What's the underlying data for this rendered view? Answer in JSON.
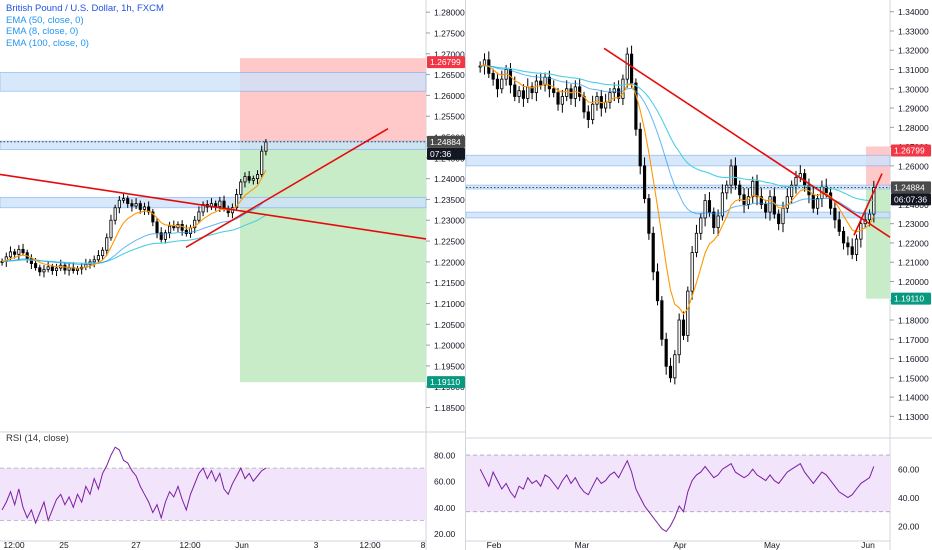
{
  "legend": {
    "title": "British Pound / U.S. Dollar, 1h, FXCM",
    "ema": [
      "EMA (50, close, 0)",
      "EMA (8, close, 0)",
      "EMA (100, close, 0)"
    ]
  },
  "rsi_label": "RSI (14, close)",
  "colors": {
    "candle": "#000000",
    "ema_fast": "#ff9800",
    "ema_slow": "#4dd0e1",
    "ema_blue": "#2196f3",
    "trend": "#e50b0b",
    "target_zone": "#c8ebc8",
    "stop_zone": "#ffc9c9",
    "rsi_line": "#7b1fa2",
    "rsi_band": "#f1e4fb",
    "zone_band": "#cfe3fb"
  },
  "chart_data": [
    {
      "type": "candlestick",
      "name": "left-1h",
      "ylim": [
        1.182,
        1.281
      ],
      "y_ticks": [
        "1.28000",
        "1.27500",
        "1.27000",
        "1.26500",
        "1.26000",
        "1.25500",
        "1.25000",
        "1.24500",
        "1.24000",
        "1.23500",
        "1.23000",
        "1.22500",
        "1.22000",
        "1.21500",
        "1.21000",
        "1.20500",
        "1.20000",
        "1.19500",
        "1.19000",
        "1.18500"
      ],
      "x_ticks": [
        "12:00",
        "25",
        "27",
        "12:00",
        "Jun",
        "3",
        "12:00",
        "8"
      ],
      "price_labels": [
        {
          "text": "1.26799",
          "kind": "stop"
        },
        {
          "text": "1.24884",
          "kind": "last"
        },
        {
          "text": "07:36",
          "kind": "timer"
        },
        {
          "text": "1.19110",
          "kind": "target"
        }
      ],
      "closes": [
        1.2201,
        1.2212,
        1.2224,
        1.2218,
        1.223,
        1.2222,
        1.2208,
        1.2196,
        1.2186,
        1.2176,
        1.2182,
        1.2188,
        1.2179,
        1.2185,
        1.2192,
        1.218,
        1.2186,
        1.2179,
        1.2183,
        1.2187,
        1.2194,
        1.22,
        1.2205,
        1.2215,
        1.2228,
        1.2258,
        1.23,
        1.233,
        1.2348,
        1.2352,
        1.234,
        1.2334,
        1.234,
        1.2326,
        1.2332,
        1.232,
        1.2296,
        1.227,
        1.2254,
        1.227,
        1.2286,
        1.2282,
        1.229,
        1.2276,
        1.2268,
        1.2282,
        1.23,
        1.232,
        1.2338,
        1.2332,
        1.234,
        1.2333,
        1.2346,
        1.2328,
        1.2318,
        1.233,
        1.2362,
        1.2392,
        1.2405,
        1.2396,
        1.24,
        1.241,
        1.2466,
        1.2488
      ],
      "rsi": [
        38,
        44,
        52,
        42,
        54,
        40,
        32,
        38,
        28,
        36,
        44,
        30,
        38,
        46,
        50,
        42,
        48,
        40,
        50,
        44,
        56,
        50,
        62,
        54,
        66,
        72,
        80,
        86,
        84,
        76,
        74,
        68,
        64,
        56,
        50,
        44,
        36,
        42,
        32,
        44,
        52,
        48,
        56,
        46,
        38,
        50,
        58,
        66,
        70,
        62,
        68,
        60,
        66,
        54,
        50,
        58,
        64,
        70,
        62,
        66,
        60,
        64,
        68,
        70
      ],
      "rsi_ylim": [
        15,
        90
      ],
      "rsi_ticks": [
        "80.00",
        "60.00",
        "40.00",
        "20.00"
      ]
    },
    {
      "type": "candlestick",
      "name": "right-daily",
      "ylim": [
        1.125,
        1.344
      ],
      "y_ticks": [
        "1.34000",
        "1.33000",
        "1.32000",
        "1.31000",
        "1.30000",
        "1.29000",
        "1.28000",
        "1.27000",
        "1.26000",
        "1.25000",
        "1.24000",
        "1.23000",
        "1.22000",
        "1.21000",
        "1.20000",
        "1.19000",
        "1.18000",
        "1.17000",
        "1.16000",
        "1.15000",
        "1.14000",
        "1.13000"
      ],
      "x_ticks": [
        "Feb",
        "Mar",
        "Apr",
        "May",
        "Jun"
      ],
      "price_labels": [
        {
          "text": "1.26799",
          "kind": "stop"
        },
        {
          "text": "1.24884",
          "kind": "last"
        },
        {
          "text": "06:07:36",
          "kind": "timer"
        },
        {
          "text": "1.19110",
          "kind": "target"
        }
      ],
      "closes": [
        1.3118,
        1.315,
        1.308,
        1.305,
        1.3,
        1.305,
        1.31,
        1.302,
        1.296,
        1.299,
        1.295,
        1.301,
        1.298,
        1.304,
        1.302,
        1.306,
        1.3,
        1.298,
        1.292,
        1.296,
        1.3,
        1.295,
        1.301,
        1.296,
        1.288,
        1.284,
        1.292,
        1.296,
        1.29,
        1.293,
        1.298,
        1.3,
        1.295,
        1.305,
        1.318,
        1.303,
        1.279,
        1.26,
        1.243,
        1.225,
        1.205,
        1.19,
        1.17,
        1.156,
        1.15,
        1.162,
        1.18,
        1.172,
        1.195,
        1.215,
        1.225,
        1.233,
        1.242,
        1.236,
        1.228,
        1.234,
        1.246,
        1.25,
        1.26,
        1.25,
        1.245,
        1.24,
        1.244,
        1.252,
        1.244,
        1.24,
        1.236,
        1.244,
        1.235,
        1.23,
        1.238,
        1.244,
        1.25,
        1.254,
        1.256,
        1.25,
        1.245,
        1.238,
        1.243,
        1.249,
        1.246,
        1.238,
        1.232,
        1.226,
        1.22,
        1.218,
        1.214,
        1.222,
        1.23,
        1.232,
        1.235,
        1.2488
      ],
      "rsi": [
        60,
        54,
        48,
        58,
        52,
        46,
        50,
        44,
        40,
        48,
        46,
        54,
        50,
        52,
        48,
        56,
        54,
        50,
        46,
        52,
        56,
        50,
        54,
        48,
        44,
        42,
        48,
        54,
        50,
        52,
        56,
        58,
        54,
        60,
        66,
        58,
        46,
        40,
        34,
        30,
        26,
        22,
        18,
        16,
        20,
        26,
        34,
        30,
        44,
        52,
        56,
        58,
        62,
        58,
        54,
        56,
        60,
        62,
        64,
        58,
        56,
        54,
        56,
        60,
        56,
        54,
        52,
        56,
        52,
        50,
        54,
        58,
        60,
        62,
        64,
        58,
        54,
        50,
        54,
        58,
        56,
        52,
        48,
        44,
        42,
        40,
        42,
        46,
        50,
        52,
        54,
        62
      ],
      "rsi_ylim": [
        10,
        75
      ],
      "rsi_ticks": [
        "60.00",
        "40.00",
        "20.00"
      ]
    }
  ]
}
